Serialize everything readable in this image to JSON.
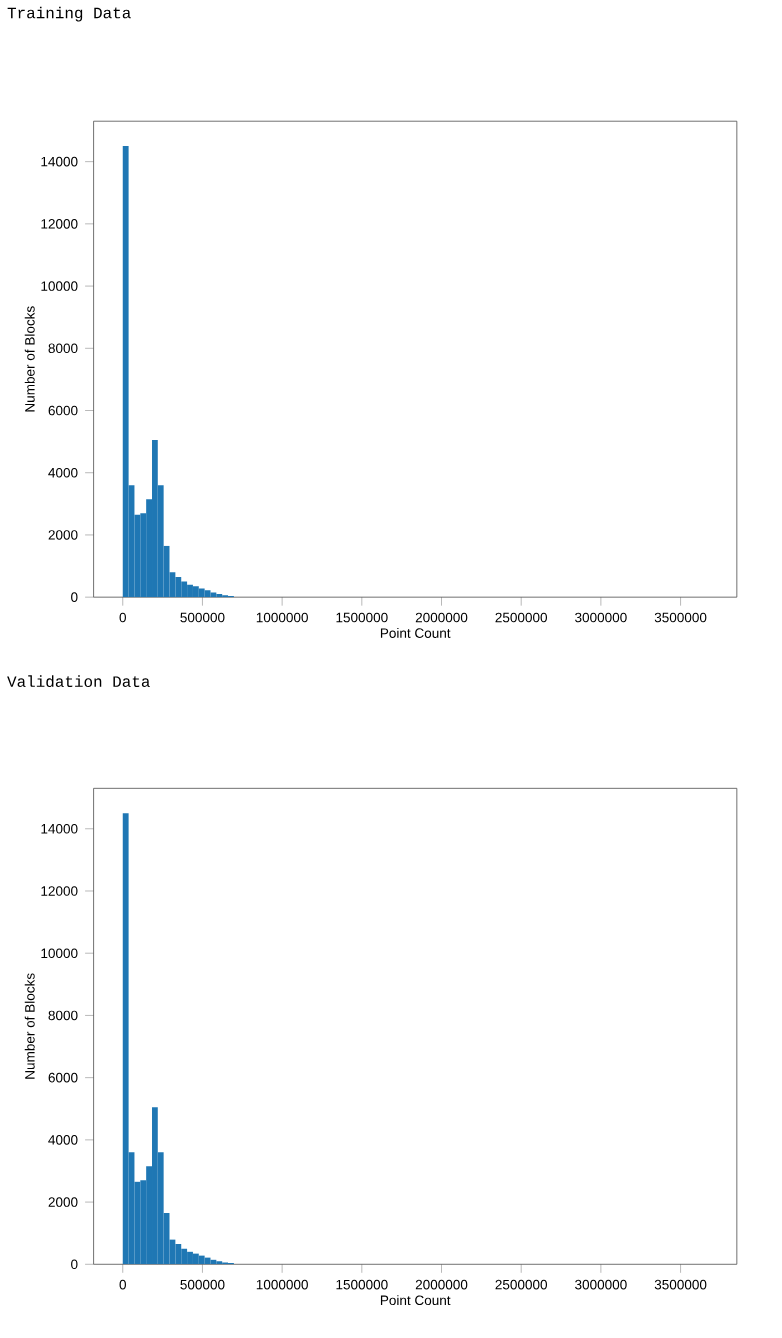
{
  "chart_data": [
    {
      "type": "histogram",
      "title": "Training Data",
      "xlabel": "Point Count",
      "ylabel": "Number of Blocks",
      "color": "#1f77b4",
      "bins": [
        0,
        36700,
        73400,
        110100,
        146800,
        183500,
        220200,
        256900,
        293600,
        330300,
        367000,
        403700,
        440400,
        477100,
        513800,
        550500,
        587200,
        623900,
        660600,
        697300,
        734000,
        770700,
        807400,
        844100,
        880800,
        917500,
        954200,
        990900,
        1027600,
        1064300,
        1101000,
        1137700,
        1174400,
        1211100,
        1247800,
        1284500,
        1321200,
        1357900,
        1394600,
        1431300,
        1468000,
        1504700,
        1541400,
        1578100,
        1614800,
        1651500,
        1688200,
        1724900,
        1761600,
        1798300,
        1835000,
        1871700,
        1908400,
        1945100,
        1981800,
        2018500,
        2055200,
        2091900,
        2128600,
        2165300,
        2202000,
        2238700,
        2275400,
        2312100,
        2348800,
        2385500,
        2422200,
        2458900,
        2495600,
        2532300,
        2569000,
        2605700,
        2642400,
        2679100,
        2715800,
        2752500,
        2789200,
        2825900,
        2862600,
        2899300,
        2936000,
        2972700,
        3009400,
        3046100,
        3082800,
        3119500,
        3156200,
        3192900,
        3229600,
        3266300,
        3303000,
        3339700,
        3376400,
        3413100,
        3449800,
        3486500,
        3523200,
        3559900,
        3596600,
        3633300,
        3670000
      ],
      "values": [
        14500,
        3600,
        2650,
        2700,
        3150,
        5050,
        3600,
        1650,
        800,
        650,
        500,
        400,
        350,
        280,
        220,
        150,
        100,
        60,
        40,
        0,
        0,
        0,
        0,
        0,
        0,
        0,
        0,
        0,
        0,
        0,
        0,
        0,
        0,
        0,
        0,
        0,
        0,
        0,
        0,
        0,
        0,
        0,
        0,
        0,
        0,
        0,
        0,
        0,
        0,
        0,
        0,
        0,
        0,
        0,
        0,
        0,
        0,
        0,
        0,
        0,
        0,
        0,
        0,
        0,
        0,
        0,
        0,
        0,
        0,
        0,
        0,
        0,
        0,
        0,
        0,
        0,
        0,
        0,
        0,
        0,
        0,
        0,
        0,
        0,
        0,
        0,
        0,
        0,
        0,
        0,
        0,
        0,
        0,
        0,
        0,
        0,
        0,
        0,
        0,
        0
      ],
      "xlim": [
        -183000,
        3853000
      ],
      "ylim": [
        0,
        15300
      ],
      "xticks": [
        0,
        500000,
        1000000,
        1500000,
        2000000,
        2500000,
        3000000,
        3500000
      ],
      "yticks": [
        0,
        2000,
        4000,
        6000,
        8000,
        10000,
        12000,
        14000
      ],
      "grid": false
    },
    {
      "type": "histogram",
      "title": "Validation Data",
      "xlabel": "Point Count",
      "ylabel": "Number of Blocks",
      "color": "#1f77b4",
      "bins": [
        0,
        36700,
        73400,
        110100,
        146800,
        183500,
        220200,
        256900,
        293600,
        330300,
        367000,
        403700,
        440400,
        477100,
        513800,
        550500,
        587200,
        623900,
        660600,
        697300,
        734000,
        770700,
        807400,
        844100,
        880800,
        917500,
        954200,
        990900,
        1027600,
        1064300,
        1101000,
        1137700,
        1174400,
        1211100,
        1247800,
        1284500,
        1321200,
        1357900,
        1394600,
        1431300,
        1468000,
        1504700,
        1541400,
        1578100,
        1614800,
        1651500,
        1688200,
        1724900,
        1761600,
        1798300,
        1835000,
        1871700,
        1908400,
        1945100,
        1981800,
        2018500,
        2055200,
        2091900,
        2128600,
        2165300,
        2202000,
        2238700,
        2275400,
        2312100,
        2348800,
        2385500,
        2422200,
        2458900,
        2495600,
        2532300,
        2569000,
        2605700,
        2642400,
        2679100,
        2715800,
        2752500,
        2789200,
        2825900,
        2862600,
        2899300,
        2936000,
        2972700,
        3009400,
        3046100,
        3082800,
        3119500,
        3156200,
        3192900,
        3229600,
        3266300,
        3303000,
        3339700,
        3376400,
        3413100,
        3449800,
        3486500,
        3523200,
        3559900,
        3596600,
        3633300,
        3670000
      ],
      "values": [
        14500,
        3600,
        2650,
        2700,
        3150,
        5050,
        3600,
        1650,
        800,
        650,
        500,
        400,
        350,
        280,
        220,
        150,
        100,
        60,
        40,
        0,
        0,
        0,
        0,
        0,
        0,
        0,
        0,
        0,
        0,
        0,
        0,
        0,
        0,
        0,
        0,
        0,
        0,
        0,
        0,
        0,
        0,
        0,
        0,
        0,
        0,
        0,
        0,
        0,
        0,
        0,
        0,
        0,
        0,
        0,
        0,
        0,
        0,
        0,
        0,
        0,
        0,
        0,
        0,
        0,
        0,
        0,
        0,
        0,
        0,
        0,
        0,
        0,
        0,
        0,
        0,
        0,
        0,
        0,
        0,
        0,
        0,
        0,
        0,
        0,
        0,
        0,
        0,
        0,
        0,
        0,
        0,
        0,
        0,
        0,
        0,
        0,
        0,
        0,
        0,
        0
      ],
      "xlim": [
        -183000,
        3853000
      ],
      "ylim": [
        0,
        15300
      ],
      "xticks": [
        0,
        500000,
        1000000,
        1500000,
        2000000,
        2500000,
        3000000,
        3500000
      ],
      "yticks": [
        0,
        2000,
        4000,
        6000,
        8000,
        10000,
        12000,
        14000
      ],
      "grid": false
    }
  ]
}
